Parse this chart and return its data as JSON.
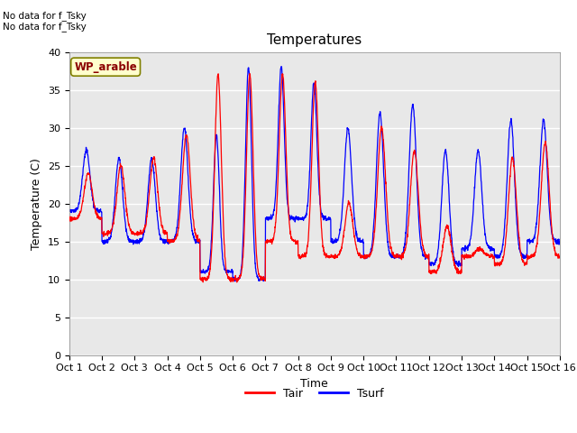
{
  "title": "Temperatures",
  "xlabel": "Time",
  "ylabel": "Temperature (C)",
  "ylim": [
    0,
    40
  ],
  "yticks": [
    0,
    5,
    10,
    15,
    20,
    25,
    30,
    35,
    40
  ],
  "background_color": "#e8e8e8",
  "text_above": [
    "No data for f_Tsky",
    "No data for f_Tsky"
  ],
  "wp_label": "WP_arable",
  "tair_color": "red",
  "tsurf_color": "blue",
  "legend_labels": [
    "Tair",
    "Tsurf"
  ],
  "xtick_labels": [
    "Oct 1",
    "Oct 2",
    "Oct 3",
    "Oct 4",
    "Oct 5",
    "Oct 6",
    "Oct 7",
    "Oct 8",
    "Oct 9",
    "Oct 10",
    "Oct 11",
    "Oct 12",
    "Oct 13",
    "Oct 14",
    "Oct 15",
    "Oct 16"
  ],
  "days": 15,
  "pts_per_day": 144,
  "tair_base": [
    18,
    16,
    16,
    15,
    10,
    10,
    15,
    13,
    13,
    13,
    13,
    11,
    13,
    12,
    13
  ],
  "tair_peak": [
    24,
    25,
    26,
    29,
    37,
    37,
    37,
    36,
    20,
    30,
    27,
    17,
    14,
    26,
    28
  ],
  "tair_ptime": [
    0.58,
    0.58,
    0.58,
    0.58,
    0.55,
    0.52,
    0.52,
    0.52,
    0.55,
    0.55,
    0.55,
    0.55,
    0.55,
    0.55,
    0.55
  ],
  "tair_width": [
    0.12,
    0.12,
    0.12,
    0.12,
    0.1,
    0.1,
    0.1,
    0.1,
    0.12,
    0.12,
    0.12,
    0.12,
    0.12,
    0.12,
    0.12
  ],
  "tsurf_base": [
    19,
    15,
    15,
    15,
    11,
    10,
    18,
    18,
    15,
    13,
    13,
    12,
    14,
    13,
    15
  ],
  "tsurf_peak": [
    27,
    26,
    26,
    30,
    29,
    38,
    38,
    36,
    30,
    32,
    33,
    27,
    27,
    31,
    31
  ],
  "tsurf_ptime": [
    0.52,
    0.52,
    0.52,
    0.52,
    0.5,
    0.48,
    0.48,
    0.48,
    0.52,
    0.5,
    0.5,
    0.5,
    0.5,
    0.5,
    0.5
  ],
  "tsurf_width": [
    0.11,
    0.11,
    0.11,
    0.11,
    0.09,
    0.09,
    0.09,
    0.09,
    0.11,
    0.11,
    0.11,
    0.11,
    0.11,
    0.11,
    0.11
  ]
}
